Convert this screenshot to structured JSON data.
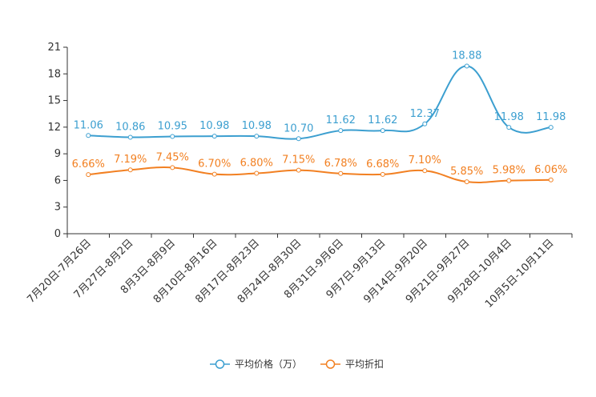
{
  "chart_data": {
    "type": "line",
    "title": "",
    "xlabel": "",
    "ylabel": "",
    "ylim": [
      0,
      21
    ],
    "yticks": [
      0,
      3,
      6,
      9,
      12,
      15,
      18,
      21
    ],
    "grid": false,
    "legend_position": "bottom-center",
    "categories": [
      "7月20日-7月26日",
      "7月27日-8月2日",
      "8月3日-8月9日",
      "8月10日-8月16日",
      "8月17日-8月23日",
      "8月24日-8月30日",
      "8月31日-9月6日",
      "9月7日-9月13日",
      "9月14日-9月20日",
      "9月21日-9月27日",
      "9月28日-10月4日",
      "10月5日-10月11日"
    ],
    "series": [
      {
        "name": "平均价格（万）",
        "color": "#3c9fd0",
        "values": [
          11.06,
          10.86,
          10.95,
          10.98,
          10.98,
          10.7,
          11.62,
          11.62,
          12.37,
          18.88,
          11.98,
          11.98
        ],
        "labels": [
          "11.06",
          "10.86",
          "10.95",
          "10.98",
          "10.98",
          "10.70",
          "11.62",
          "11.62",
          "12.37",
          "18.88",
          "11.98",
          "11.98"
        ]
      },
      {
        "name": "平均折扣",
        "color": "#f28022",
        "values": [
          6.66,
          7.19,
          7.45,
          6.7,
          6.8,
          7.15,
          6.78,
          6.68,
          7.1,
          5.85,
          5.98,
          6.06
        ],
        "labels": [
          "6.66%",
          "7.19%",
          "7.45%",
          "6.70%",
          "6.80%",
          "7.15%",
          "6.78%",
          "6.68%",
          "7.10%",
          "5.85%",
          "5.98%",
          "6.06%"
        ]
      }
    ]
  }
}
